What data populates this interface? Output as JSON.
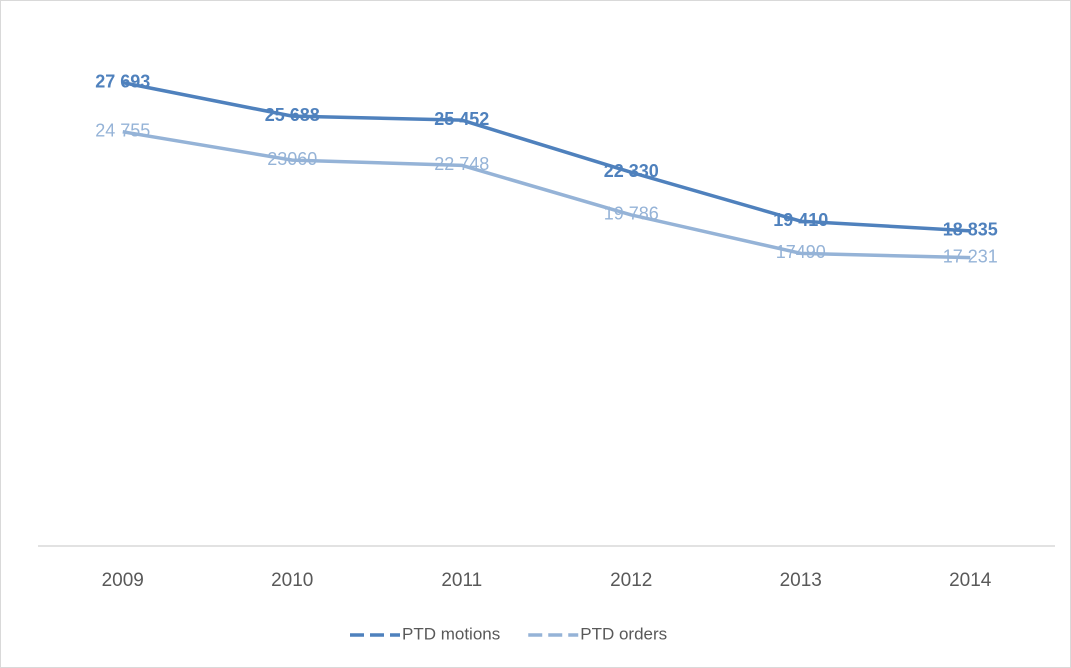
{
  "chart_data": {
    "type": "line",
    "categories": [
      "2009",
      "2010",
      "2011",
      "2012",
      "2013",
      "2014"
    ],
    "series": [
      {
        "name": "PTD motions",
        "color": "#4f81bd",
        "values": [
          27693,
          25688,
          25452,
          22330,
          19410,
          18835
        ],
        "value_labels": [
          "27 693",
          "25 688",
          "25 452",
          "22 330",
          "19 410",
          "18 835"
        ]
      },
      {
        "name": "PTD orders",
        "color": "#95b3d7",
        "values": [
          24755,
          23060,
          22748,
          19786,
          17490,
          17231
        ],
        "value_labels": [
          "24 755",
          "23060",
          "22 748",
          "19 786",
          "17490",
          "17 231"
        ]
      }
    ],
    "ylim": [
      0,
      30000
    ],
    "legend": "bottom"
  }
}
